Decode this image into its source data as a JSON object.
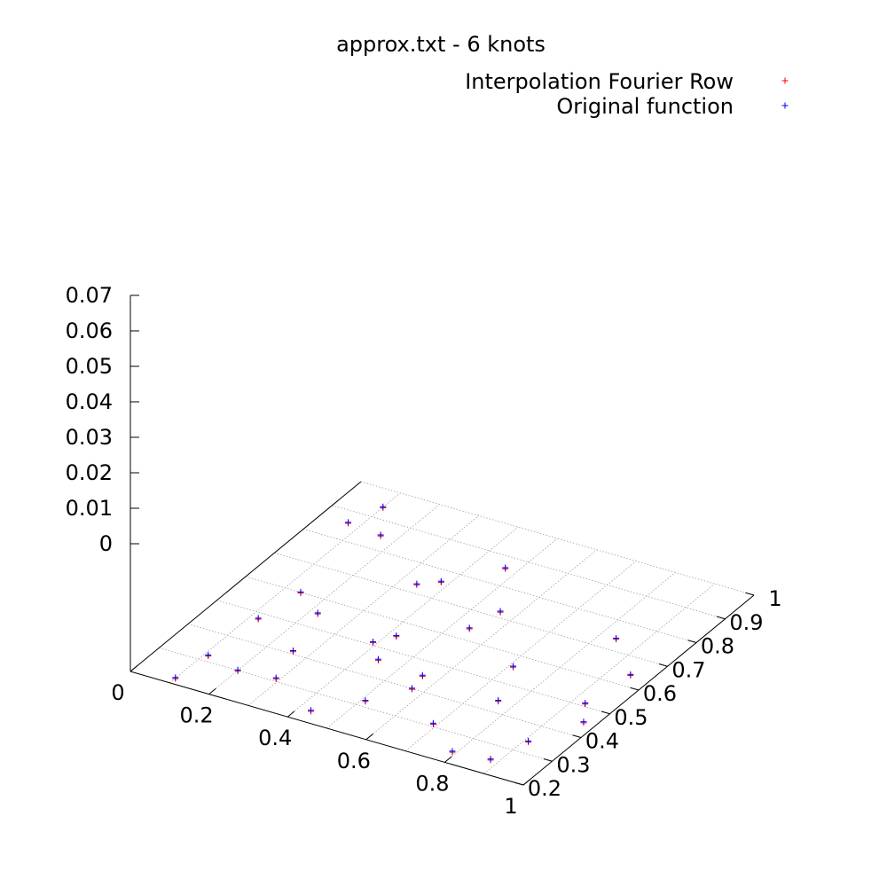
{
  "chart_data": {
    "type": "scatter",
    "title": "approx.txt - 6 knots",
    "xlabel": "",
    "ylabel": "",
    "zlabel": "",
    "grid": true,
    "legend_position": "top-right",
    "xlim": [
      0,
      1
    ],
    "ylim": [
      0.2,
      1
    ],
    "zlim": [
      0,
      0.07
    ],
    "x_ticks": [
      {
        "value": 0,
        "label": "0"
      },
      {
        "value": 0.2,
        "label": "0.2"
      },
      {
        "value": 0.4,
        "label": "0.4"
      },
      {
        "value": 0.6,
        "label": "0.6"
      },
      {
        "value": 0.8,
        "label": "0.8"
      },
      {
        "value": 1,
        "label": "1"
      }
    ],
    "y_ticks": [
      {
        "value": 0.2,
        "label": "0.2"
      },
      {
        "value": 0.3,
        "label": "0.3"
      },
      {
        "value": 0.4,
        "label": "0.4"
      },
      {
        "value": 0.5,
        "label": "0.5"
      },
      {
        "value": 0.6,
        "label": "0.6"
      },
      {
        "value": 0.7,
        "label": "0.7"
      },
      {
        "value": 0.8,
        "label": "0.8"
      },
      {
        "value": 0.9,
        "label": "0.9"
      },
      {
        "value": 1,
        "label": "1"
      }
    ],
    "z_ticks": [
      {
        "value": 0,
        "label": "0"
      },
      {
        "value": 0.01,
        "label": "0.01"
      },
      {
        "value": 0.02,
        "label": "0.02"
      },
      {
        "value": 0.03,
        "label": "0.03"
      },
      {
        "value": 0.04,
        "label": "0.04"
      },
      {
        "value": 0.05,
        "label": "0.05"
      },
      {
        "value": 0.06,
        "label": "0.06"
      },
      {
        "value": 0.07,
        "label": "0.07"
      }
    ],
    "series": [
      {
        "name": "Interpolation Fourier Row",
        "color": "#ff0000",
        "marker": "plus",
        "points": [
          [
            0.1,
            0.94,
            0.0
          ],
          [
            0.1,
            0.22,
            0.0
          ],
          [
            0.07,
            0.86,
            0.0
          ],
          [
            0.11,
            0.32,
            0.0
          ],
          [
            0.12,
            0.48,
            0.0
          ],
          [
            0.14,
            0.6,
            0.0
          ],
          [
            0.16,
            0.85,
            0.0
          ],
          [
            0.2,
            0.3,
            0.0
          ],
          [
            0.22,
            0.55,
            0.0
          ],
          [
            0.26,
            0.41,
            0.0
          ],
          [
            0.29,
            0.31,
            0.0
          ],
          [
            0.34,
            0.73,
            0.0
          ],
          [
            0.38,
            0.76,
            0.0
          ],
          [
            0.39,
            0.51,
            0.0
          ],
          [
            0.42,
            0.55,
            0.0
          ],
          [
            0.44,
            0.46,
            0.0
          ],
          [
            0.43,
            0.24,
            0.0
          ],
          [
            0.47,
            0.86,
            0.0
          ],
          [
            0.54,
            0.64,
            0.0
          ],
          [
            0.56,
            0.72,
            0.0
          ],
          [
            0.51,
            0.32,
            0.0
          ],
          [
            0.56,
            0.45,
            0.0
          ],
          [
            0.57,
            0.4,
            0.0
          ],
          [
            0.69,
            0.31,
            0.0
          ],
          [
            0.71,
            0.56,
            0.0
          ],
          [
            0.76,
            0.44,
            0.0
          ],
          [
            0.79,
            0.24,
            0.0
          ],
          [
            0.84,
            0.74,
            0.0
          ],
          [
            0.88,
            0.25,
            0.0
          ],
          [
            0.91,
            0.34,
            0.0
          ],
          [
            0.93,
            0.51,
            0.0
          ],
          [
            0.95,
            0.64,
            0.0
          ],
          [
            0.97,
            0.45,
            0.0
          ]
        ]
      },
      {
        "name": "Original function",
        "color": "#0000ff",
        "marker": "plus",
        "points": [
          [
            0.1,
            0.94,
            0.0
          ],
          [
            0.1,
            0.22,
            0.0
          ],
          [
            0.07,
            0.86,
            0.0
          ],
          [
            0.11,
            0.32,
            0.0
          ],
          [
            0.12,
            0.48,
            0.0
          ],
          [
            0.14,
            0.6,
            0.0
          ],
          [
            0.16,
            0.85,
            0.0
          ],
          [
            0.2,
            0.3,
            0.0
          ],
          [
            0.22,
            0.55,
            0.0
          ],
          [
            0.26,
            0.41,
            0.0
          ],
          [
            0.29,
            0.31,
            0.0
          ],
          [
            0.34,
            0.73,
            0.0
          ],
          [
            0.38,
            0.76,
            0.0
          ],
          [
            0.39,
            0.51,
            0.0
          ],
          [
            0.42,
            0.55,
            0.0
          ],
          [
            0.44,
            0.46,
            0.0
          ],
          [
            0.43,
            0.24,
            0.0
          ],
          [
            0.47,
            0.86,
            0.0
          ],
          [
            0.54,
            0.64,
            0.0
          ],
          [
            0.56,
            0.72,
            0.0
          ],
          [
            0.51,
            0.32,
            0.0
          ],
          [
            0.56,
            0.45,
            0.0
          ],
          [
            0.57,
            0.4,
            0.0
          ],
          [
            0.69,
            0.31,
            0.0
          ],
          [
            0.71,
            0.56,
            0.0
          ],
          [
            0.76,
            0.44,
            0.0
          ],
          [
            0.79,
            0.24,
            0.0
          ],
          [
            0.84,
            0.74,
            0.0
          ],
          [
            0.88,
            0.25,
            0.0
          ],
          [
            0.91,
            0.34,
            0.0
          ],
          [
            0.93,
            0.51,
            0.0
          ],
          [
            0.95,
            0.64,
            0.0
          ],
          [
            0.97,
            0.45,
            0.0
          ]
        ]
      }
    ]
  }
}
